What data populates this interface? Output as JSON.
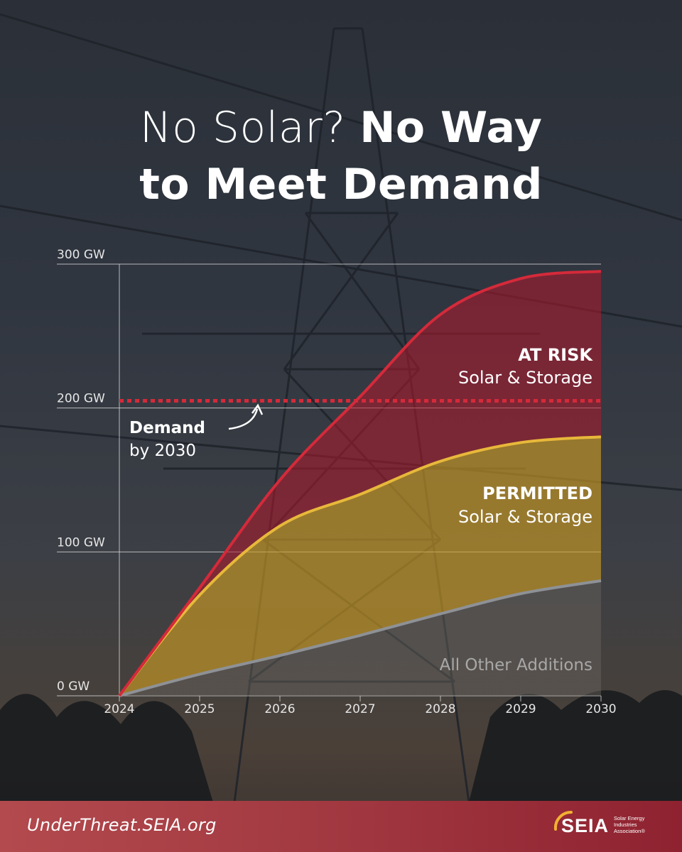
{
  "title": {
    "line1_light": "No Solar?",
    "line1_bold": "No Way",
    "line2_bold": "to Meet Demand"
  },
  "chart_data": {
    "type": "area",
    "x": [
      2024,
      2025,
      2026,
      2027,
      2028,
      2029,
      2030
    ],
    "ylim": [
      0,
      300
    ],
    "y_ticks": [
      "0 GW",
      "100 GW",
      "200 GW",
      "300 GW"
    ],
    "x_ticks": [
      "2024",
      "2025",
      "2026",
      "2027",
      "2028",
      "2029",
      "2030"
    ],
    "series": [
      {
        "name": "All Other Additions",
        "color": "#8e9196",
        "values": [
          0,
          15,
          28,
          42,
          57,
          71,
          80
        ]
      },
      {
        "name": "PERMITTED Solar & Storage",
        "color": "#e8b83a",
        "values": [
          0,
          70,
          118,
          140,
          163,
          176,
          180
        ]
      },
      {
        "name": "AT RISK Solar & Storage",
        "color": "#d42a3a",
        "values": [
          0,
          75,
          150,
          208,
          265,
          290,
          295
        ]
      }
    ],
    "demand_line": {
      "value": 205,
      "color": "#d42a3a"
    },
    "annotations": {
      "at_risk_bold": "AT RISK",
      "at_risk_sub": "Solar & Storage",
      "permitted_bold": "PERMITTED",
      "permitted_sub": "Solar & Storage",
      "other": "All Other Additions",
      "demand_bold": "Demand",
      "demand_sub": "by 2030"
    }
  },
  "footer": {
    "url": "UnderThreat.SEIA.org",
    "logo_text": "SEIA",
    "logo_sub": [
      "Solar Energy",
      "Industries",
      "Association®"
    ]
  }
}
